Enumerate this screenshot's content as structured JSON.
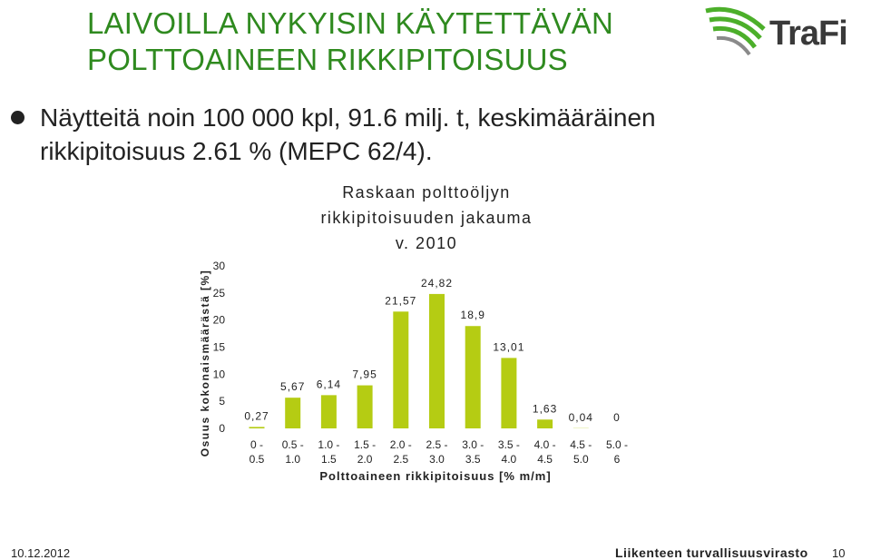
{
  "slide": {
    "title": "LAIVOILLA NYKYISIN KÄYTETTÄVÄN POLTTOAINEEN RIKKIPITOISUUS",
    "bullet": "Näytteitä noin 100 000 kpl, 91.6 milj. t, keskimääräinen rikkipitoisuus 2.61 % (MEPC 62/4).",
    "logo_text": "TraFi",
    "footer_date": "10.12.2012",
    "footer_org": "Liikenteen turvallisuusvirasto",
    "page_number": "10"
  },
  "colors": {
    "title": "#2f8a1f",
    "bar": "#b5cc13",
    "logo_green": "#4caf2a"
  },
  "icons": {
    "bullet": "filled-circle-bullet",
    "logo": "trafi-swoosh-logo"
  },
  "chart_data": {
    "type": "bar",
    "title_lines": [
      "Raskaan polttoöljyn",
      "rikkipitoisuuden jakauma",
      "v. 2010"
    ],
    "xlabel": "Polttoaineen rikkipitoisuus [% m/m]",
    "ylabel": "Osuus kokonaismäärästä [%]",
    "ylim": [
      0,
      30
    ],
    "yticks": [
      "0",
      "5",
      "10",
      "15",
      "20",
      "25",
      "30"
    ],
    "grid": false,
    "legend": "none",
    "categories": [
      [
        "0 -",
        "0.5"
      ],
      [
        "0.5 -",
        "1.0"
      ],
      [
        "1.0 -",
        "1.5"
      ],
      [
        "1.5 -",
        "2.0"
      ],
      [
        "2.0 -",
        "2.5"
      ],
      [
        "2.5 -",
        "3.0"
      ],
      [
        "3.0 -",
        "3.5"
      ],
      [
        "3.5 -",
        "4.0"
      ],
      [
        "4.0 -",
        "4.5"
      ],
      [
        "4.5 -",
        "5.0"
      ],
      [
        "5.0 -",
        "6"
      ]
    ],
    "values": [
      0.27,
      5.67,
      6.14,
      7.95,
      21.57,
      24.82,
      18.9,
      13.01,
      1.63,
      0.04,
      0
    ],
    "data_labels": [
      "0,27",
      "5,67",
      "6,14",
      "7,95",
      "21,57",
      "24,82",
      "18,9",
      "13,01",
      "1,63",
      "0,04",
      "0"
    ]
  }
}
